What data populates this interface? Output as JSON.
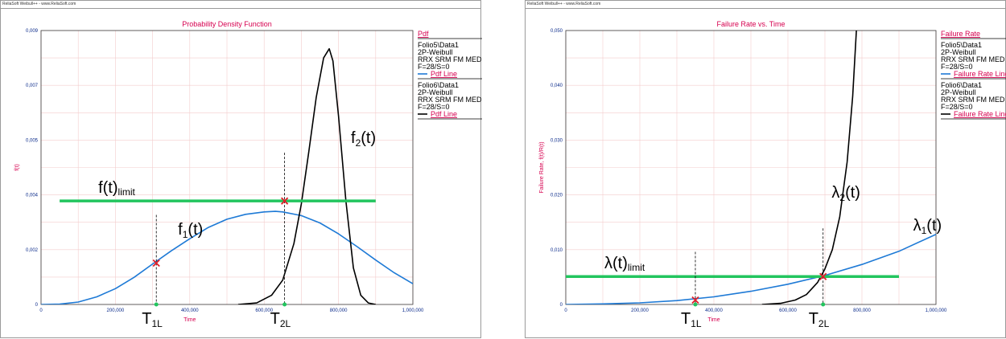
{
  "watermark": "ReliaSoft Weibull++ - www.ReliaSoft.com",
  "chart_data": [
    {
      "type": "line",
      "title": "Probability Density Function",
      "xlabel": "Time",
      "ylabel": "f(t)",
      "xlim": [
        0,
        1000000
      ],
      "ylim": [
        0,
        0.009
      ],
      "x_ticks": [
        "0",
        "200,000",
        "400,000",
        "600,000",
        "800,000",
        "1,000,000"
      ],
      "y_ticks": [
        "0",
        "0,002",
        "0,004",
        "0,005",
        "0,007",
        "0,009"
      ],
      "legend_title": "Pdf",
      "legend": [
        {
          "lines": [
            "Folio5\\Data1",
            "2P-Weibull",
            "RRX SRM FM MED",
            "F=28/S=0"
          ],
          "line_label": "Pdf Line",
          "color": "#1e7ad6"
        },
        {
          "lines": [
            "Folio6\\Data1",
            "2P-Weibull",
            "RRX SRM FM MED",
            "F=28/S=0"
          ],
          "line_label": "Pdf Line",
          "color": "#000000"
        }
      ],
      "series": [
        {
          "label": "f1(t)",
          "color": "#1e7ad6",
          "x": [
            0,
            50000,
            100000,
            150000,
            200000,
            250000,
            300000,
            350000,
            400000,
            450000,
            500000,
            550000,
            600000,
            630000,
            650000,
            700000,
            750000,
            800000,
            850000,
            900000,
            950000,
            1000000
          ],
          "y": [
            0,
            1e-05,
            8e-05,
            0.00025,
            0.00052,
            0.00089,
            0.00133,
            0.00176,
            0.00216,
            0.00253,
            0.0028,
            0.00296,
            0.00304,
            0.00306,
            0.00304,
            0.00292,
            0.00268,
            0.00232,
            0.0019,
            0.00146,
            0.00104,
            0.00068
          ]
        },
        {
          "label": "f2(t)",
          "color": "#000000",
          "x": [
            530000,
            580000,
            620000,
            650000,
            680000,
            700000,
            720000,
            740000,
            760000,
            775000,
            785000,
            800000,
            820000,
            840000,
            860000,
            880000,
            900000
          ],
          "y": [
            0,
            5e-05,
            0.0003,
            0.0008,
            0.002,
            0.0033,
            0.005,
            0.0068,
            0.0081,
            0.0084,
            0.008,
            0.0062,
            0.0034,
            0.0012,
            0.0003,
            5e-05,
            0
          ]
        }
      ],
      "limit": {
        "label": "f(t)",
        "sub": "limit",
        "y": 0.0034,
        "x_start": 50000,
        "x_end": 900000,
        "color": "#22c55e"
      },
      "markers": [
        {
          "label": "T",
          "sub": "1L",
          "x": 310000,
          "y": 0.00136
        },
        {
          "label": "T",
          "sub": "2L",
          "x": 655000,
          "y": 0.0034
        }
      ],
      "curve_labels": [
        {
          "text": "f",
          "sub": "1",
          "suffix": "(t)",
          "x": 390000,
          "y": 0.0023
        },
        {
          "text": "f",
          "sub": "2",
          "suffix": "(t)",
          "x": 855000,
          "y": 0.0053
        }
      ]
    },
    {
      "type": "line",
      "title": "Failure Rate vs. Time",
      "xlabel": "Time",
      "ylabel": "Failure Rate, f(t)/R(t)",
      "xlim": [
        0,
        1000000
      ],
      "ylim": [
        0,
        0.05
      ],
      "x_ticks": [
        "0",
        "200,000",
        "400,000",
        "600,000",
        "800,000",
        "1,000,000"
      ],
      "y_ticks": [
        "0",
        "0,010",
        "0,020",
        "0,030",
        "0,040",
        "0,050"
      ],
      "legend_title": "Failure Rate",
      "legend": [
        {
          "lines": [
            "Folio5\\Data1",
            "2P-Weibull",
            "RRX SRM FM MED",
            "F=28/S=0"
          ],
          "line_label": "Failure Rate Line",
          "color": "#1e7ad6"
        },
        {
          "lines": [
            "Folio6\\Data1",
            "2P-Weibull",
            "RRX SRM FM MED",
            "F=28/S=0"
          ],
          "line_label": "Failure Rate Line",
          "color": "#000000"
        }
      ],
      "series": [
        {
          "label": "λ1(t)",
          "color": "#1e7ad6",
          "x": [
            0,
            100000,
            200000,
            300000,
            400000,
            500000,
            600000,
            700000,
            800000,
            900000,
            1000000
          ],
          "y": [
            0,
            0.0001,
            0.0003,
            0.0007,
            0.0014,
            0.0024,
            0.0037,
            0.0053,
            0.0073,
            0.0097,
            0.0128
          ]
        },
        {
          "label": "λ2(t)",
          "color": "#000000",
          "x": [
            530000,
            580000,
            620000,
            650000,
            680000,
            700000,
            720000,
            740000,
            760000,
            775000,
            785000
          ],
          "y": [
            0,
            0.0002,
            0.0008,
            0.0018,
            0.004,
            0.0065,
            0.01,
            0.016,
            0.026,
            0.038,
            0.05
          ]
        }
      ],
      "limit": {
        "label": "λ(t)",
        "sub": "limit",
        "y": 0.0051,
        "x_start": 0,
        "x_end": 900000,
        "color": "#22c55e"
      },
      "markers": [
        {
          "label": "T",
          "sub": "1L",
          "x": 350000,
          "y": 0.0008
        },
        {
          "label": "T",
          "sub": "2L",
          "x": 695000,
          "y": 0.0051
        }
      ],
      "curve_labels": [
        {
          "text": "λ",
          "sub": "2",
          "suffix": "(t)",
          "x": 740000,
          "y": 0.0195
        },
        {
          "text": "λ",
          "sub": "1",
          "suffix": "(t)",
          "x": 960000,
          "y": 0.0135
        }
      ]
    }
  ]
}
